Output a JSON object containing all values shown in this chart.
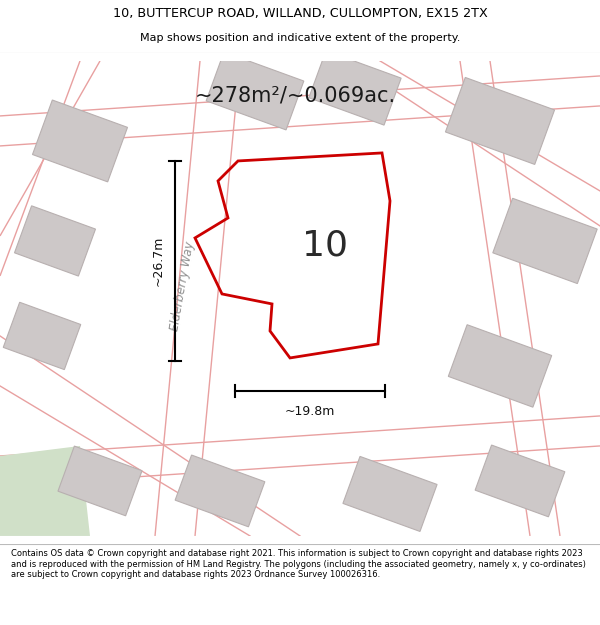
{
  "title_line1": "10, BUTTERCUP ROAD, WILLAND, CULLOMPTON, EX15 2TX",
  "title_line2": "Map shows position and indicative extent of the property.",
  "area_text": "~278m²/~0.069ac.",
  "label_number": "10",
  "dim_height": "~26.7m",
  "dim_width": "~19.8m",
  "road_label": "Elderberry Way",
  "footer_text": "Contains OS data © Crown copyright and database right 2021. This information is subject to Crown copyright and database rights 2023 and is reproduced with the permission of HM Land Registry. The polygons (including the associated geometry, namely x, y co-ordinates) are subject to Crown copyright and database rights 2023 Ordnance Survey 100026316.",
  "bg_color": "#f5f0f0",
  "map_bg": "#f0eaea",
  "plot_outline_color": "#cc0000",
  "building_fill": "#cdc8c8",
  "building_stroke": "#b8b0b0",
  "dim_line_color": "#000000",
  "title_bg": "#ffffff",
  "footer_bg": "#ffffff",
  "road_line_color": "#e8a0a0",
  "green_fill": "#d0e0c8"
}
